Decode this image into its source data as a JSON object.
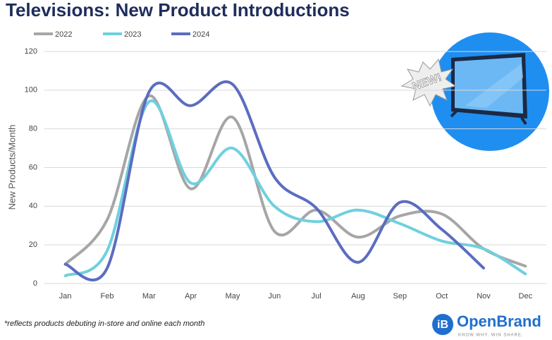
{
  "chart_data": {
    "type": "line",
    "title": "Televisions: New Product Introductions",
    "y_label": "New Products/Month",
    "categories": [
      "Jan",
      "Feb",
      "Mar",
      "Apr",
      "May",
      "Jun",
      "Jul",
      "Aug",
      "Sep",
      "Oct",
      "Nov",
      "Dec"
    ],
    "series": [
      {
        "name": "2022",
        "color": "#a6a6a6",
        "values": [
          10,
          33,
          97,
          49,
          86,
          27,
          38,
          24,
          35,
          36,
          18,
          9
        ]
      },
      {
        "name": "2023",
        "color": "#6fd0df",
        "values": [
          4,
          17,
          94,
          52,
          70,
          40,
          32,
          38,
          31,
          22,
          18,
          5
        ]
      },
      {
        "name": "2024",
        "color": "#5b6dc0",
        "values": [
          10,
          8,
          99,
          92,
          103,
          55,
          39,
          11,
          42,
          28,
          8,
          null
        ]
      }
    ],
    "ylim": [
      0,
      120
    ],
    "yticks": [
      0,
      20,
      40,
      60,
      80,
      100,
      120
    ],
    "grid": true,
    "legend": "top",
    "footnote": "*reflects products debuting in-store and online each month"
  },
  "badge": "NEW!",
  "brand": {
    "name": "OpenBrand",
    "tagline": "KNOW WHY. WIN SHARE."
  }
}
